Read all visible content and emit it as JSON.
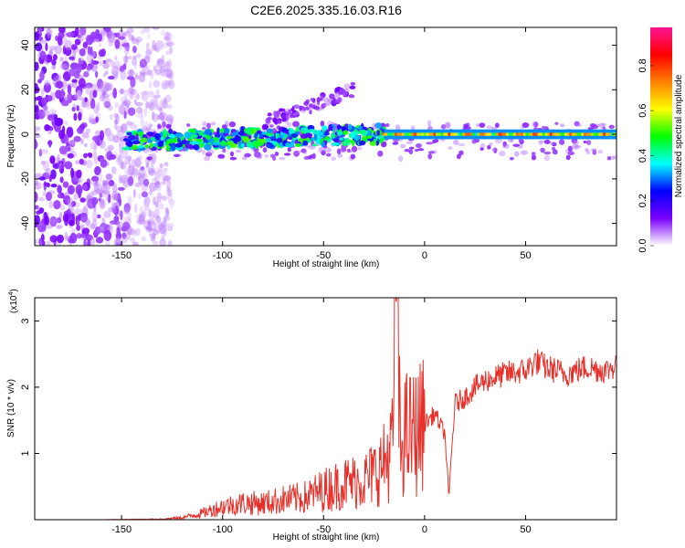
{
  "title": "C2E6.2025.335.16.03.R16",
  "chart_data": [
    {
      "type": "heatmap",
      "xlabel": "Height of straight line (km)",
      "ylabel": "Frequency (Hz)",
      "xlim": [
        -193,
        95
      ],
      "ylim": [
        -50,
        48
      ],
      "xticks": [
        -150,
        -100,
        -50,
        0,
        50
      ],
      "yticks": [
        -40,
        -20,
        0,
        20,
        40
      ],
      "colorbar": {
        "label": "Normalized spectral amplitude",
        "range": [
          0,
          0.97
        ],
        "ticks": [
          "0.0",
          "0.2",
          "0.4",
          "0.6",
          "0.8"
        ],
        "colors": [
          "#ffffff",
          "#7a00ff",
          "#0000ff",
          "#00ffff",
          "#00ff00",
          "#ffff00",
          "#ff7f00",
          "#ff0000",
          "#ff1493"
        ]
      },
      "features": [
        {
          "region": "broadband noise",
          "x_range": [
            -193,
            -125
          ],
          "freq_range": [
            -50,
            48
          ],
          "amplitude": 0.12
        },
        {
          "region": "signal band",
          "x_range": [
            -148,
            -20
          ],
          "center_freq": -3,
          "amplitude": 0.35
        },
        {
          "region": "diverging streak",
          "x_range": [
            -80,
            -35
          ],
          "freq_range": [
            5,
            20
          ],
          "amplitude": 0.1
        },
        {
          "region": "stable band",
          "x_range": [
            -20,
            95
          ],
          "center_freq": 0,
          "amplitude": 0.75
        }
      ]
    },
    {
      "type": "line",
      "xlabel": "Height of straight line (km)",
      "ylabel": "SNR (10 * v/v)",
      "exponent_label": "(x10",
      "exponent": "4",
      "exponent_close": ")",
      "xlim": [
        -193,
        95
      ],
      "ylim": [
        0,
        3.35
      ],
      "xticks": [
        -150,
        -100,
        -50,
        0,
        50
      ],
      "yticks": [
        1,
        2,
        3
      ],
      "color": "#e8302a",
      "series": [
        {
          "x": [
            -193,
            -160,
            -130,
            -120,
            -110,
            -100,
            -90,
            -80,
            -70,
            -60,
            -50,
            -40,
            -30,
            -25,
            -20,
            -16,
            -14,
            -12,
            -10,
            -5,
            0,
            5,
            10,
            12,
            15,
            20,
            25,
            30,
            40,
            50,
            55,
            60,
            70,
            80,
            90,
            95
          ],
          "values": [
            0.0,
            0.0,
            0.01,
            0.03,
            0.1,
            0.2,
            0.25,
            0.25,
            0.3,
            0.33,
            0.45,
            0.55,
            0.6,
            0.7,
            0.85,
            1.1,
            3.3,
            1.0,
            1.3,
            1.3,
            1.45,
            1.6,
            1.3,
            0.4,
            1.75,
            1.85,
            2.0,
            2.1,
            2.2,
            2.25,
            2.4,
            2.3,
            2.2,
            2.3,
            2.25,
            2.35
          ]
        }
      ]
    }
  ]
}
